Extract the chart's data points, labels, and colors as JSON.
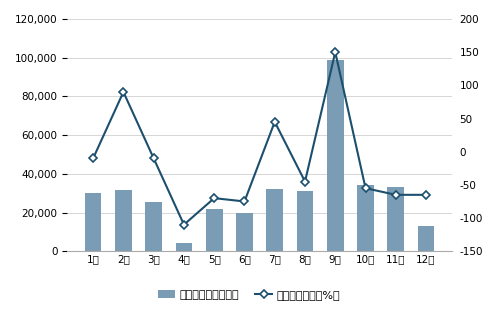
{
  "months": [
    "1月",
    "2月",
    "3月",
    "4月",
    "5月",
    "6月",
    "7月",
    "8月",
    "9月",
    "10月",
    "11月",
    "12月"
  ],
  "export_value": [
    30000,
    31500,
    25500,
    4000,
    22000,
    20000,
    32000,
    31000,
    99000,
    34000,
    33000,
    13000
  ],
  "export_yoy": [
    -10,
    90,
    -10,
    -110,
    -70,
    -75,
    45,
    -45,
    150,
    -55,
    -65,
    -65
  ],
  "bar_color": "#7a9db5",
  "line_color": "#1c4f6e",
  "marker_style": "D",
  "marker_facecolor": "white",
  "marker_edgecolor": "#1c4f6e",
  "ylim_left": [
    0,
    120000
  ],
  "ylim_right": [
    -150,
    200
  ],
  "yticks_left": [
    0,
    20000,
    40000,
    60000,
    80000,
    100000,
    120000
  ],
  "yticks_right": [
    -150,
    -100,
    -50,
    0,
    50,
    100,
    150,
    200
  ],
  "legend_label_bar": "出口金额（千美元）",
  "legend_label_line": "出口金额同比（%）",
  "background_color": "#ffffff",
  "grid_color": "#d0d0d0",
  "figsize": [
    4.98,
    3.1
  ],
  "dpi": 100
}
